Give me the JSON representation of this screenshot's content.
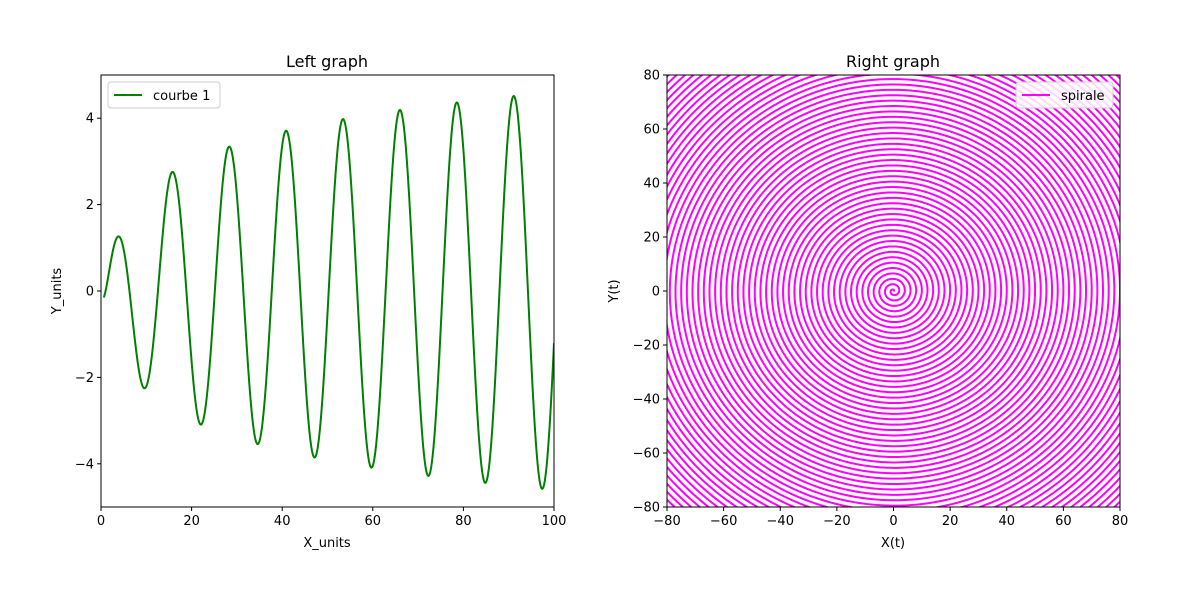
{
  "chart_data": [
    {
      "type": "line",
      "title": "Left graph",
      "xlabel": "X_units",
      "ylabel": "Y_units",
      "xlim": [
        0,
        100
      ],
      "ylim": [
        -5,
        5
      ],
      "xticks": [
        0,
        20,
        40,
        60,
        80,
        100
      ],
      "yticks": [
        -4,
        -2,
        0,
        2,
        4
      ],
      "xtick_labels": [
        "0",
        "20",
        "40",
        "60",
        "80",
        "100"
      ],
      "ytick_labels": [
        "−4",
        "−2",
        "0",
        "2",
        "4"
      ],
      "grid": false,
      "legend": "top-left",
      "series": [
        {
          "name": "courbe 1",
          "color": "#008000",
          "formula": "y = log(x) * sin(x / 2)",
          "x_range": [
            0.6,
            100
          ]
        }
      ]
    },
    {
      "type": "line",
      "title": "Right graph",
      "xlabel": "X(t)",
      "ylabel": "Y(t)",
      "xlim": [
        -80,
        80
      ],
      "ylim": [
        -80,
        80
      ],
      "xticks": [
        -80,
        -60,
        -40,
        -20,
        0,
        20,
        40,
        60,
        80
      ],
      "yticks": [
        -80,
        -60,
        -40,
        -20,
        0,
        20,
        40,
        60,
        80
      ],
      "xtick_labels": [
        "−80",
        "−60",
        "−40",
        "−20",
        "0",
        "20",
        "40",
        "60",
        "80"
      ],
      "ytick_labels": [
        "−80",
        "−60",
        "−40",
        "−20",
        "0",
        "20",
        "40",
        "60",
        "80"
      ],
      "grid": false,
      "legend": "top-right",
      "series": [
        {
          "name": "spirale",
          "color": "#ff00ff",
          "formula": "X = t*cos(t)/pi, Y = t*sin(t)/pi",
          "t_range": [
            0,
            370
          ]
        }
      ]
    }
  ]
}
